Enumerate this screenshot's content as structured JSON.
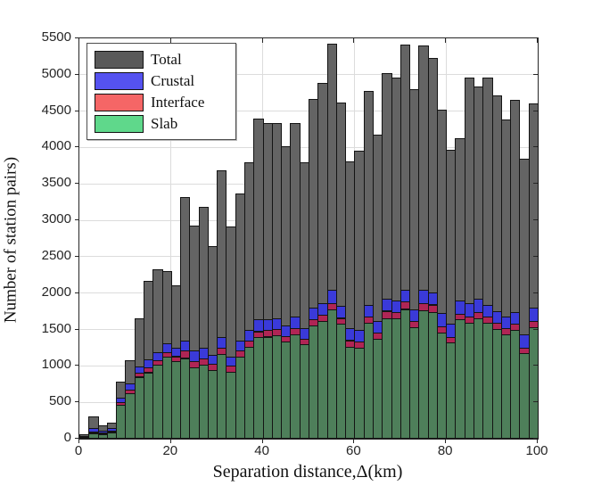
{
  "figure": {
    "xlabel": "Separation distance,Δ(km)",
    "ylabel": "Number of station pairs)",
    "background_color": "#ffffff",
    "axis_color": "#262626",
    "grid_color": "#dcdcdc"
  },
  "legend": {
    "position": "top-left",
    "entries": [
      {
        "label": "Total",
        "swatch_color": "#595959"
      },
      {
        "label": "Crustal",
        "swatch_color": "#5552f0"
      },
      {
        "label": "Interface",
        "swatch_color": "#f56666"
      },
      {
        "label": "Slab",
        "swatch_color": "#5fd88b"
      }
    ]
  },
  "chart_data": {
    "type": "bar",
    "subtype": "stacked-histogram",
    "title": "",
    "xlabel": "Separation distance,Δ(km)",
    "ylabel": "Number of station pairs)",
    "xlim": [
      0,
      100
    ],
    "ylim": [
      0,
      5500
    ],
    "xticks": [
      0,
      20,
      40,
      60,
      80,
      100
    ],
    "yticks": [
      0,
      500,
      1000,
      1500,
      2000,
      2500,
      3000,
      3500,
      4000,
      4500,
      5000,
      5500
    ],
    "grid": true,
    "bin_width_km": 2,
    "bin_start_km": [
      0,
      2,
      4,
      6,
      8,
      10,
      12,
      14,
      16,
      18,
      20,
      22,
      24,
      26,
      28,
      30,
      32,
      34,
      36,
      38,
      40,
      42,
      44,
      46,
      48,
      50,
      52,
      54,
      56,
      58,
      60,
      62,
      64,
      66,
      68,
      70,
      72,
      74,
      76,
      78,
      80,
      82,
      84,
      86,
      88,
      90,
      92,
      94,
      96,
      98
    ],
    "series": [
      {
        "name": "Total",
        "role": "total-bar-background",
        "bar_color": "#646464",
        "values": [
          50,
          300,
          170,
          210,
          770,
          1060,
          1640,
          2150,
          2310,
          2290,
          2095,
          3310,
          2920,
          3170,
          2630,
          3680,
          2900,
          3360,
          3780,
          4380,
          4330,
          4330,
          4000,
          4330,
          3780,
          4650,
          4880,
          5420,
          4600,
          3800,
          3950,
          4770,
          4165,
          5010,
          4945,
          5400,
          4790,
          5390,
          5220,
          4505,
          3955,
          4110,
          4950,
          4830,
          4950,
          4700,
          4370,
          4640,
          3840,
          4590
        ]
      },
      {
        "name": "Slab",
        "role": "stack-bottom",
        "bar_color": "#4e7f5a",
        "values": [
          15,
          65,
          55,
          75,
          450,
          615,
          835,
          900,
          1010,
          1115,
          1050,
          1095,
          970,
          1005,
          930,
          1155,
          910,
          1120,
          1255,
          1380,
          1390,
          1410,
          1320,
          1420,
          1285,
          1545,
          1605,
          1770,
          1565,
          1250,
          1240,
          1585,
          1360,
          1645,
          1645,
          1770,
          1525,
          1750,
          1730,
          1450,
          1305,
          1625,
          1585,
          1645,
          1585,
          1500,
          1420,
          1480,
          1165,
          1525
        ]
      },
      {
        "name": "Interface",
        "role": "stack-middle",
        "bar_color": "#b02555",
        "values": [
          5,
          15,
          10,
          15,
          45,
          50,
          55,
          65,
          60,
          60,
          70,
          100,
          80,
          90,
          82,
          82,
          82,
          86,
          84,
          82,
          90,
          90,
          81,
          81,
          75,
          82,
          82,
          80,
          82,
          90,
          82,
          82,
          82,
          100,
          82,
          100,
          82,
          100,
          100,
          82,
          75,
          81,
          82,
          82,
          82,
          82,
          81,
          82,
          74,
          81
        ]
      },
      {
        "name": "Crustal",
        "role": "stack-top",
        "bar_color": "#3a3ad9",
        "values": [
          10,
          55,
          30,
          40,
          60,
          80,
          95,
          110,
          110,
          123,
          115,
          145,
          145,
          145,
          122,
          143,
          122,
          131,
          143,
          163,
          150,
          145,
          143,
          164,
          142,
          163,
          163,
          185,
          163,
          163,
          163,
          163,
          163,
          163,
          163,
          163,
          163,
          184,
          163,
          184,
          184,
          184,
          183,
          184,
          163,
          163,
          164,
          163,
          184,
          184
        ]
      }
    ]
  }
}
